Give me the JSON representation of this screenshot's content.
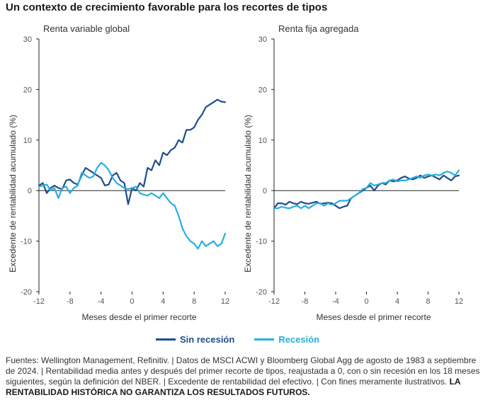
{
  "title": "Un contexto de crecimiento favorable para los recortes de tipos",
  "legend": {
    "series_a": "Sin recesión",
    "series_b": "Recesión"
  },
  "colors": {
    "sin_recesion": "#1f4e8c",
    "recesion": "#29aee0",
    "axis": "#222222",
    "tick": "#555555"
  },
  "footnote": {
    "text": "Fuentes: Wellington Management, Refinitiv.  |  Datos de MSCI ACWI y Bloomberg Global Agg de agosto de 1983 a septiembre de 2024.  |  Rentabilidad media antes y después del primer recorte de tipos, reajustada a 0, con o sin recesión en los 18 meses siguientes, según la definición del NBER.  |  Excedente de rentabilidad del efectivo.  |  Con fines meramente ilustrativos.",
    "emphasis": "LA RENTABILIDAD HISTÓRICA NO GARANTIZA LOS RESULTADOS FUTUROS."
  },
  "chart_data": [
    {
      "type": "line",
      "title": "Renta variable global",
      "xlabel": "Meses desde el primer recorte",
      "ylabel": "Excedente de rentabilidad acumulado (%)",
      "xlim": [
        -12,
        12
      ],
      "ylim": [
        -20,
        30
      ],
      "xticks": [
        -12,
        -8,
        -4,
        0,
        4,
        8,
        12
      ],
      "yticks": [
        30,
        20,
        10,
        0,
        -10,
        -20
      ],
      "series": [
        {
          "name": "Sin recesión",
          "points": [
            [
              -12,
              1
            ],
            [
              -11.5,
              1.5
            ],
            [
              -11,
              -0.5
            ],
            [
              -10.5,
              0.5
            ],
            [
              -10,
              1
            ],
            [
              -9.5,
              0.5
            ],
            [
              -9,
              0.3
            ],
            [
              -8.5,
              2
            ],
            [
              -8,
              2.2
            ],
            [
              -7.5,
              1.5
            ],
            [
              -7,
              1.2
            ],
            [
              -6.5,
              3
            ],
            [
              -6,
              4.5
            ],
            [
              -5.5,
              4
            ],
            [
              -5,
              3.5
            ],
            [
              -4.5,
              3
            ],
            [
              -4,
              2.5
            ],
            [
              -3.5,
              1
            ],
            [
              -3,
              1.2
            ],
            [
              -2.5,
              3
            ],
            [
              -2,
              3.5
            ],
            [
              -1.5,
              2
            ],
            [
              -1,
              1.5
            ],
            [
              -0.5,
              -2.7
            ],
            [
              0,
              0.5
            ],
            [
              0.5,
              0
            ],
            [
              1,
              1.5
            ],
            [
              1.5,
              0.8
            ],
            [
              2,
              4.5
            ],
            [
              2.5,
              4
            ],
            [
              3,
              6
            ],
            [
              3.5,
              5
            ],
            [
              4,
              7.5
            ],
            [
              4.5,
              7
            ],
            [
              5,
              8
            ],
            [
              5.5,
              8.5
            ],
            [
              6,
              10
            ],
            [
              6.5,
              9.5
            ],
            [
              7,
              12
            ],
            [
              7.5,
              12
            ],
            [
              8,
              12.5
            ],
            [
              8.5,
              14
            ],
            [
              9,
              15
            ],
            [
              9.5,
              16.5
            ],
            [
              10,
              17
            ],
            [
              10.5,
              17.5
            ],
            [
              11,
              18
            ],
            [
              11.5,
              17.6
            ],
            [
              12,
              17.5
            ]
          ]
        },
        {
          "name": "Recesión",
          "points": [
            [
              -12,
              0.8
            ],
            [
              -11.5,
              1
            ],
            [
              -11,
              1.2
            ],
            [
              -10.5,
              0
            ],
            [
              -10,
              0.5
            ],
            [
              -9.5,
              -1.5
            ],
            [
              -9,
              0.5
            ],
            [
              -8.5,
              0.8
            ],
            [
              -8,
              -0.5
            ],
            [
              -7.5,
              0.5
            ],
            [
              -7,
              1
            ],
            [
              -6.5,
              3.5
            ],
            [
              -6,
              3
            ],
            [
              -5.5,
              2.5
            ],
            [
              -5,
              2.8
            ],
            [
              -4.5,
              4.5
            ],
            [
              -4,
              5.5
            ],
            [
              -3.5,
              5
            ],
            [
              -3,
              4
            ],
            [
              -2.5,
              2.5
            ],
            [
              -2,
              1.5
            ],
            [
              -1.5,
              1
            ],
            [
              -1,
              0.5
            ],
            [
              -0.5,
              0.3
            ],
            [
              0,
              0.5
            ],
            [
              0.5,
              0.8
            ],
            [
              1,
              -0.5
            ],
            [
              1.5,
              -0.8
            ],
            [
              2,
              -1
            ],
            [
              2.5,
              -0.5
            ],
            [
              3,
              -1
            ],
            [
              3.5,
              -1.5
            ],
            [
              4,
              -0.5
            ],
            [
              4.5,
              -1.5
            ],
            [
              5,
              -2.5
            ],
            [
              5.5,
              -3
            ],
            [
              6,
              -5
            ],
            [
              6.5,
              -7.5
            ],
            [
              7,
              -9
            ],
            [
              7.5,
              -10
            ],
            [
              8,
              -10.5
            ],
            [
              8.5,
              -11.5
            ],
            [
              9,
              -10
            ],
            [
              9.5,
              -11
            ],
            [
              10,
              -10.5
            ],
            [
              10.5,
              -10
            ],
            [
              11,
              -11
            ],
            [
              11.5,
              -10.5
            ],
            [
              12,
              -8.5
            ]
          ]
        }
      ]
    },
    {
      "type": "line",
      "title": "Renta fija agregada",
      "xlabel": "Meses desde el primer recorte",
      "ylabel": "Excedente de rentabilidad acumulado (%)",
      "xlim": [
        -12,
        12
      ],
      "ylim": [
        -20,
        30
      ],
      "xticks": [
        -12,
        -8,
        -4,
        0,
        4,
        8,
        12
      ],
      "yticks": [
        30,
        20,
        10,
        0,
        -10,
        -20
      ],
      "series": [
        {
          "name": "Sin recesión",
          "points": [
            [
              -12,
              -3.5
            ],
            [
              -11.5,
              -2.5
            ],
            [
              -11,
              -2.5
            ],
            [
              -10.5,
              -2.8
            ],
            [
              -10,
              -2.2
            ],
            [
              -9.5,
              -2.5
            ],
            [
              -9,
              -2.7
            ],
            [
              -8.5,
              -2.2
            ],
            [
              -8,
              -2.5
            ],
            [
              -7.5,
              -2.6
            ],
            [
              -7,
              -2.4
            ],
            [
              -6.5,
              -2.2
            ],
            [
              -6,
              -2.6
            ],
            [
              -5.5,
              -2.5
            ],
            [
              -5,
              -2.4
            ],
            [
              -4.5,
              -2.5
            ],
            [
              -4,
              -3
            ],
            [
              -3.5,
              -3.5
            ],
            [
              -3,
              -3.2
            ],
            [
              -2.5,
              -3
            ],
            [
              -2,
              -1.5
            ],
            [
              -1.5,
              -1
            ],
            [
              -1,
              -0.5
            ],
            [
              -0.5,
              0
            ],
            [
              0,
              0.5
            ],
            [
              0.5,
              1
            ],
            [
              1,
              0
            ],
            [
              1.5,
              1
            ],
            [
              2,
              1.5
            ],
            [
              2.5,
              1.2
            ],
            [
              3,
              2
            ],
            [
              3.5,
              1.8
            ],
            [
              4,
              2
            ],
            [
              4.5,
              2.5
            ],
            [
              5,
              2.8
            ],
            [
              5.5,
              2.4
            ],
            [
              6,
              2.2
            ],
            [
              6.5,
              2.5
            ],
            [
              7,
              3
            ],
            [
              7.5,
              2.5
            ],
            [
              8,
              2.8
            ],
            [
              8.5,
              3
            ],
            [
              9,
              2.6
            ],
            [
              9.5,
              2.2
            ],
            [
              10,
              3
            ],
            [
              10.5,
              2.5
            ],
            [
              11,
              2
            ],
            [
              11.5,
              2.8
            ],
            [
              12,
              3
            ]
          ]
        },
        {
          "name": "Recesión",
          "points": [
            [
              -12,
              -3.5
            ],
            [
              -11.5,
              -3.5
            ],
            [
              -11,
              -3.2
            ],
            [
              -10.5,
              -3.4
            ],
            [
              -10,
              -3.5
            ],
            [
              -9.5,
              -3.2
            ],
            [
              -9,
              -3
            ],
            [
              -8.5,
              -3.5
            ],
            [
              -8,
              -3
            ],
            [
              -7.5,
              -3.5
            ],
            [
              -7,
              -3
            ],
            [
              -6.5,
              -2.5
            ],
            [
              -6,
              -2.5
            ],
            [
              -5.5,
              -3
            ],
            [
              -5,
              -2.5
            ],
            [
              -4.5,
              -2.8
            ],
            [
              -4,
              -2.5
            ],
            [
              -3.5,
              -2
            ],
            [
              -3,
              -2
            ],
            [
              -2.5,
              -2
            ],
            [
              -2,
              -1.5
            ],
            [
              -1.5,
              -1
            ],
            [
              -1,
              -0.5
            ],
            [
              -0.5,
              0.3
            ],
            [
              0,
              0.5
            ],
            [
              0.5,
              1.5
            ],
            [
              1,
              1
            ],
            [
              1.5,
              1.2
            ],
            [
              2,
              1.5
            ],
            [
              2.5,
              1.5
            ],
            [
              3,
              2
            ],
            [
              3.5,
              2.2
            ],
            [
              4,
              1.8
            ],
            [
              4.5,
              2
            ],
            [
              5,
              2
            ],
            [
              5.5,
              2.2
            ],
            [
              6,
              2.5
            ],
            [
              6.5,
              2.8
            ],
            [
              7,
              2.5
            ],
            [
              7.5,
              3
            ],
            [
              8,
              3.2
            ],
            [
              8.5,
              3
            ],
            [
              9,
              3.2
            ],
            [
              9.5,
              3
            ],
            [
              10,
              3.5
            ],
            [
              10.5,
              3.8
            ],
            [
              11,
              3.5
            ],
            [
              11.5,
              3
            ],
            [
              12,
              4
            ]
          ]
        }
      ]
    }
  ]
}
